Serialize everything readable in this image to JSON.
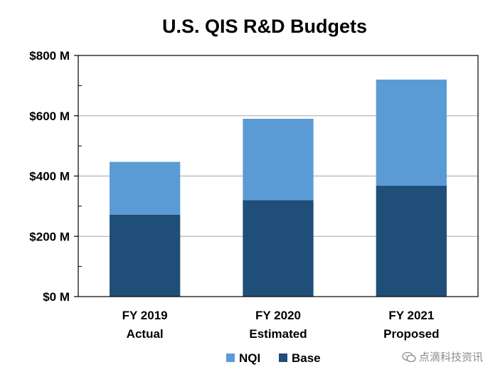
{
  "chart_data": {
    "type": "bar",
    "stacked": true,
    "title": "U.S. QIS R&D Budgets",
    "categories": [
      [
        "FY 2019",
        "Actual"
      ],
      [
        "FY 2020",
        "Estimated"
      ],
      [
        "FY 2021",
        "Proposed"
      ]
    ],
    "series": [
      {
        "name": "Base",
        "values": [
          272,
          320,
          368
        ],
        "color": "#1f4e79"
      },
      {
        "name": "NQI",
        "values": [
          175,
          270,
          352
        ],
        "color": "#5b9bd5"
      }
    ],
    "legend_order": [
      "NQI",
      "Base"
    ],
    "legend_position": "bottom",
    "ylim": [
      0,
      800
    ],
    "yticks": [
      0,
      200,
      400,
      600,
      800
    ],
    "ytick_labels": [
      "$0 M",
      "$200 M",
      "$400 M",
      "$600 M",
      "$800 M"
    ],
    "minor_tick_step": 100,
    "grid": true,
    "xlabel": "",
    "ylabel": ""
  },
  "watermark": {
    "text": "点滴科技资讯"
  }
}
